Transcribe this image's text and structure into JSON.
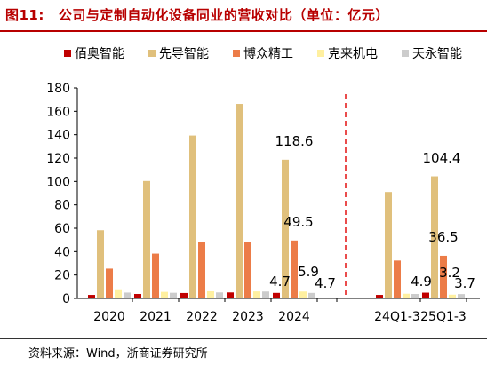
{
  "figure": {
    "label": "图11:",
    "title": "公司与定制自动化设备同业的营收对比（单位：亿元）"
  },
  "source": "资料来源：Wind，浙商证券研究所",
  "chart_data": {
    "type": "bar",
    "categories": [
      "2020",
      "2021",
      "2022",
      "2023",
      "2024",
      "24Q1-3",
      "25Q1-3"
    ],
    "series": [
      {
        "name": "佰奥智能",
        "color": "#c00000",
        "values": [
          3.0,
          3.8,
          4.6,
          5.1,
          4.7,
          3.0,
          4.9
        ]
      },
      {
        "name": "先导智能",
        "color": "#e0c07c",
        "values": [
          58.3,
          100.4,
          139.3,
          166.3,
          118.6,
          91.0,
          104.4
        ]
      },
      {
        "name": "博众精工",
        "color": "#ec7c48",
        "values": [
          25.5,
          38.3,
          48.1,
          48.4,
          49.5,
          32.4,
          36.5
        ]
      },
      {
        "name": "克来机电",
        "color": "#fff0a0",
        "values": [
          7.8,
          5.6,
          6.1,
          6.0,
          5.9,
          4.0,
          3.2
        ]
      },
      {
        "name": "天永智能",
        "color": "#cccccc",
        "values": [
          5.0,
          4.8,
          5.1,
          5.9,
          4.7,
          3.8,
          3.7
        ]
      }
    ],
    "value_labels": [
      {
        "category": "2024",
        "series": "先导智能",
        "text": "118.6"
      },
      {
        "category": "2024",
        "series": "博众精工",
        "text": "49.5"
      },
      {
        "category": "2024",
        "series": "佰奥智能",
        "text": "4.7"
      },
      {
        "category": "2024",
        "series": "克来机电",
        "text": "5.9"
      },
      {
        "category": "2024",
        "series": "天永智能",
        "text": "4.7"
      },
      {
        "category": "25Q1-3",
        "series": "先导智能",
        "text": "104.4"
      },
      {
        "category": "25Q1-3",
        "series": "博众精工",
        "text": "36.5"
      },
      {
        "category": "25Q1-3",
        "series": "佰奥智能",
        "text": "4.9"
      },
      {
        "category": "25Q1-3",
        "series": "克来机电",
        "text": "3.2"
      },
      {
        "category": "25Q1-3",
        "series": "天永智能",
        "text": "3.7"
      }
    ],
    "yticks": [
      "0",
      "20",
      "40",
      "60",
      "80",
      "100",
      "120",
      "140",
      "160",
      "180"
    ],
    "ylim": [
      0,
      180
    ],
    "legend": "top",
    "grid": false,
    "divider": "red dashed line between 2024 and 24Q1-3"
  }
}
